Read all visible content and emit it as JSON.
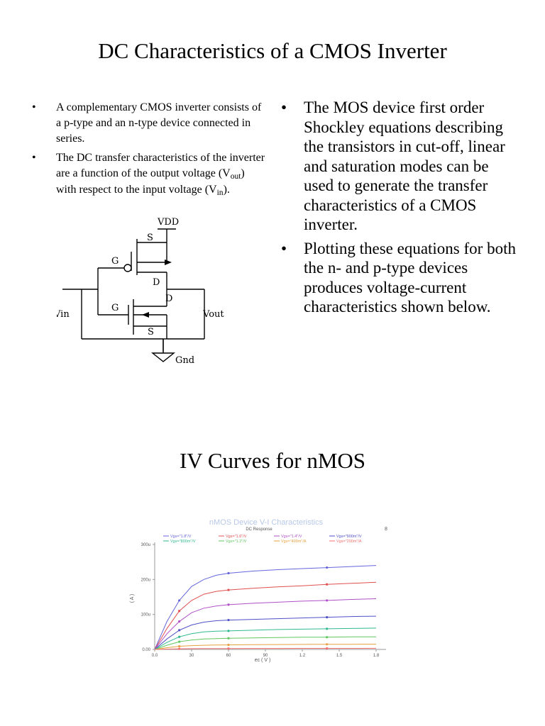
{
  "slide1": {
    "title": "DC Characteristics of a CMOS Inverter",
    "bullet_char": "•",
    "left_bullets": [
      {
        "text": "A complementary CMOS inverter consists of a p-type and an n-type device connected in series."
      },
      {
        "pre": "The DC transfer characteristics of the inverter are a function of the output voltage (V",
        "sub1": "out",
        "mid": ") with respect to the input voltage (V",
        "sub2": "in",
        "post": ")."
      }
    ],
    "right_bullets": [
      "The MOS device first order Shockley equations describing the transistors in cut-off, linear and saturation modes can be used to generate the transfer characteristics of a CMOS inverter.",
      "Plotting these equations for both the n- and p-type devices produces voltage-current characteristics shown below."
    ],
    "schematic": {
      "vdd": "VDD",
      "gnd": "Gnd",
      "vin": "Vin",
      "vout": "Vout",
      "g_top": "G",
      "g_bottom": "G",
      "s_top": "S",
      "s_bottom": "S",
      "d_top": "D",
      "d_bottom": "D"
    }
  },
  "slide2": {
    "title": "IV Curves for nMOS",
    "plot_title": "nMOS Device V-I Characteristics",
    "plot_subtitle": "DC Response",
    "corner_mark": "8",
    "xlabel": "ec ( V )",
    "ylabel": "( A )",
    "legend_row1": [
      "Vgs=\"1.8\"/V",
      "Vgs=\"1.6\"/V",
      "Vgs=\"1.4\"/V",
      "Vgs=\"900m\"/V"
    ],
    "legend_row2": [
      "Vgs=\"800m\"/V",
      "Vgs=\"1.2\"/V",
      "Vgs=\"400m\"/A",
      "Vgs=\"200m\"/A"
    ],
    "colors": [
      "#6666dd",
      "#e05050",
      "#b050c8",
      "#5050c8",
      "#30b890",
      "#60c860",
      "#e8a040",
      "#f07070"
    ]
  },
  "chart_data": {
    "type": "line",
    "title": "nMOS Device V-I Characteristics",
    "subtitle": "DC Response",
    "xlabel": "ec ( V )",
    "ylabel": "( A )",
    "x_ticks": [
      "0.0",
      "30",
      "60",
      "90",
      "1.2",
      "1.5",
      "1.8"
    ],
    "y_ticks": [
      "0.00",
      "100u",
      "200u",
      "300u"
    ],
    "xlim": [
      0,
      1.8
    ],
    "ylim": [
      0,
      0.0003
    ],
    "grid": false,
    "legend_position": "top",
    "x": [
      0,
      0.1,
      0.2,
      0.3,
      0.4,
      0.5,
      0.6,
      0.8,
      1.0,
      1.2,
      1.4,
      1.6,
      1.8
    ],
    "series": [
      {
        "color": "#6666dd",
        "values": [
          0,
          8e-05,
          0.00014,
          0.00018,
          0.0002,
          0.000212,
          0.000218,
          0.000224,
          0.000228,
          0.000231,
          0.000234,
          0.000237,
          0.00024
        ]
      },
      {
        "color": "#e05050",
        "values": [
          0,
          6e-05,
          0.00011,
          0.00014,
          0.000158,
          0.000166,
          0.00017,
          0.000175,
          0.000179,
          0.000182,
          0.000186,
          0.000189,
          0.000192
        ]
      },
      {
        "color": "#b050c8",
        "values": [
          0,
          4.5e-05,
          8e-05,
          0.000105,
          0.000118,
          0.000124,
          0.000128,
          0.000132,
          0.000135,
          0.000138,
          0.00014,
          0.000143,
          0.000145
        ]
      },
      {
        "color": "#5050c8",
        "values": [
          0,
          3e-05,
          5.5e-05,
          7e-05,
          7.8e-05,
          8.2e-05,
          8.4e-05,
          8.6e-05,
          8.8e-05,
          9e-05,
          9.2e-05,
          9.4e-05,
          9.5e-05
        ]
      },
      {
        "color": "#30b890",
        "values": [
          0,
          2e-05,
          3.6e-05,
          4.5e-05,
          5e-05,
          5.2e-05,
          5.3e-05,
          5.5e-05,
          5.7e-05,
          5.8e-05,
          5.9e-05,
          6e-05,
          6.1e-05
        ]
      },
      {
        "color": "#60c860",
        "values": [
          0,
          1.2e-05,
          2.2e-05,
          2.7e-05,
          3e-05,
          3.1e-05,
          3.2e-05,
          3.3e-05,
          3.4e-05,
          3.5e-05,
          3.5e-05,
          3.6e-05,
          3.6e-05
        ]
      },
      {
        "color": "#e8a040",
        "values": [
          0,
          5e-06,
          9e-06,
          1.1e-05,
          1.2e-05,
          1.25e-05,
          1.3e-05,
          1.35e-05,
          1.4e-05,
          1.43e-05,
          1.46e-05,
          1.48e-05,
          1.5e-05
        ]
      },
      {
        "color": "#f07070",
        "values": [
          0,
          1e-06,
          1.8e-06,
          2.2e-06,
          2.5e-06,
          2.6e-06,
          2.7e-06,
          2.8e-06,
          2.9e-06,
          3e-06,
          3e-06,
          3.1e-06,
          3.2e-06
        ]
      }
    ]
  }
}
